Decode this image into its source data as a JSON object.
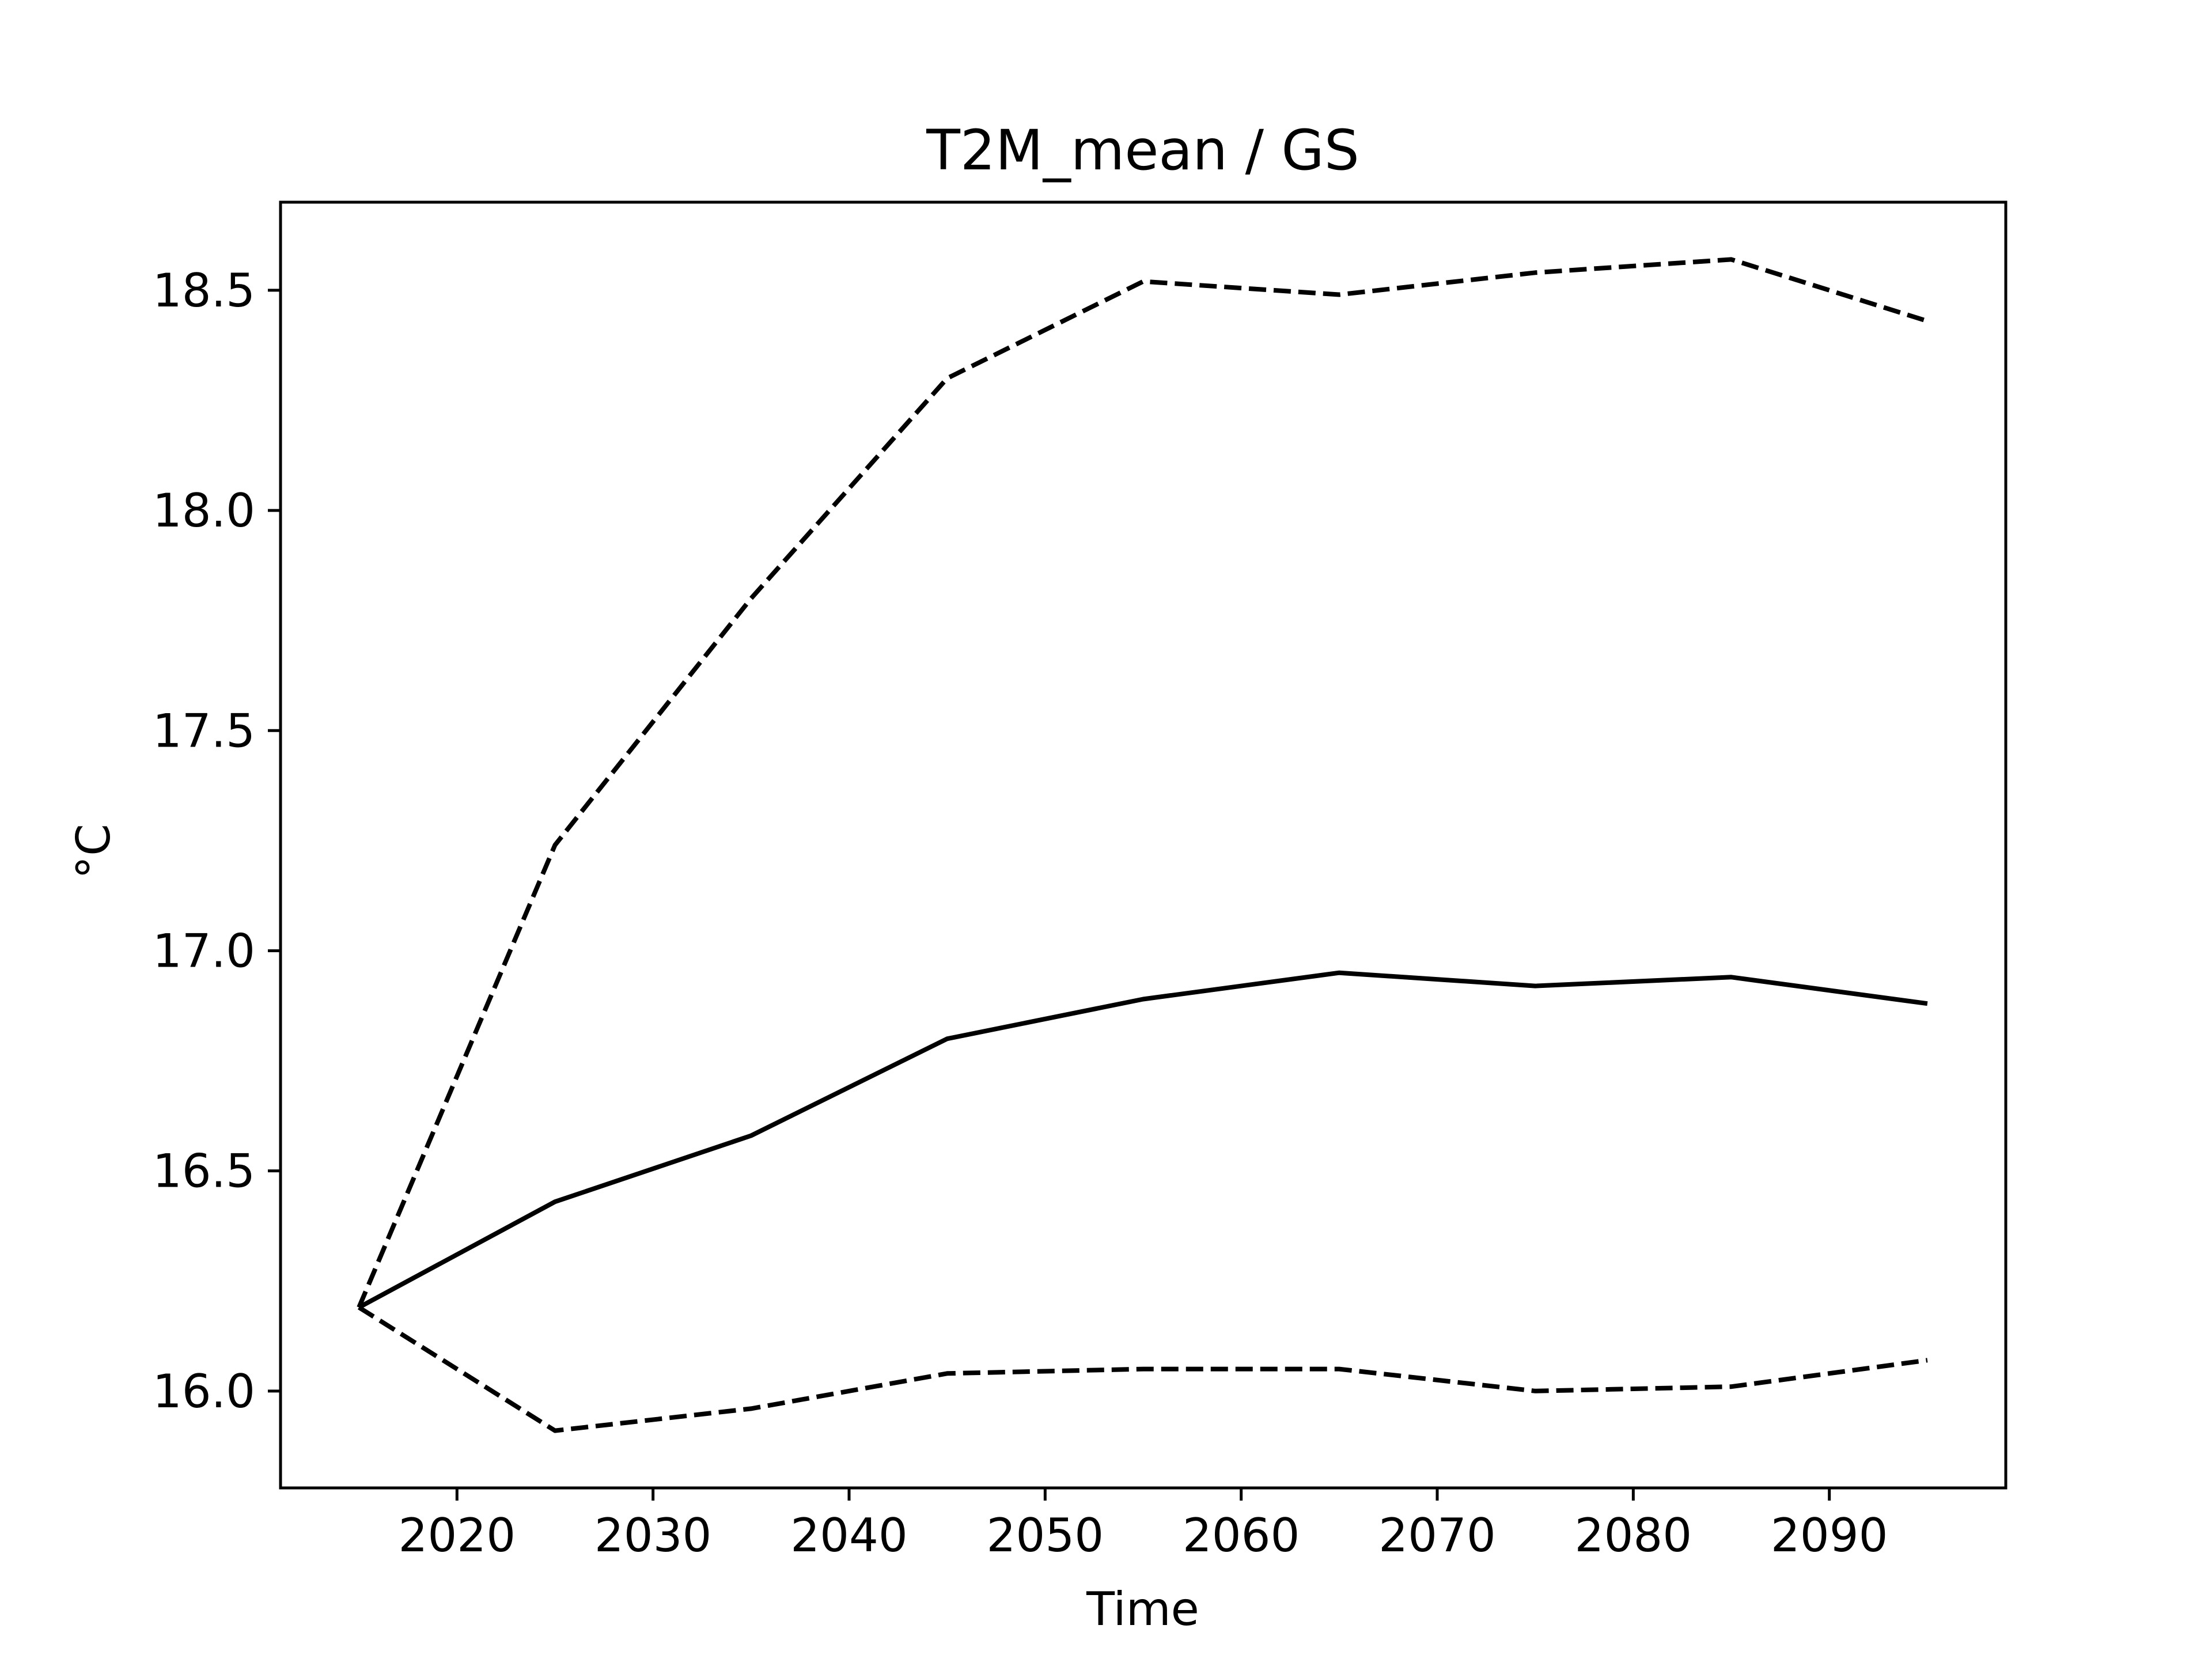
{
  "chart_data": {
    "type": "line",
    "title": "T2M_mean / GS",
    "xlabel": "Time",
    "ylabel": "°C",
    "xlim": [
      2011,
      2099
    ],
    "ylim": [
      15.78,
      18.7
    ],
    "xticks": [
      2020,
      2030,
      2040,
      2050,
      2060,
      2070,
      2080,
      2090
    ],
    "yticks": [
      16.0,
      16.5,
      17.0,
      17.5,
      18.0,
      18.5
    ],
    "grid": false,
    "x": [
      2015,
      2025,
      2035,
      2045,
      2055,
      2065,
      2075,
      2085,
      2095
    ],
    "series": [
      {
        "style": "solid",
        "color": "#000000",
        "values": [
          16.19,
          16.43,
          16.58,
          16.8,
          16.89,
          16.95,
          16.92,
          16.94,
          16.88
        ]
      },
      {
        "style": "dashed",
        "color": "#000000",
        "values": [
          16.19,
          17.24,
          17.8,
          18.3,
          18.52,
          18.49,
          18.54,
          18.57,
          18.43
        ]
      },
      {
        "style": "dashed",
        "color": "#000000",
        "values": [
          16.19,
          15.91,
          15.96,
          16.04,
          16.05,
          16.05,
          16.0,
          16.01,
          16.07
        ]
      }
    ]
  }
}
